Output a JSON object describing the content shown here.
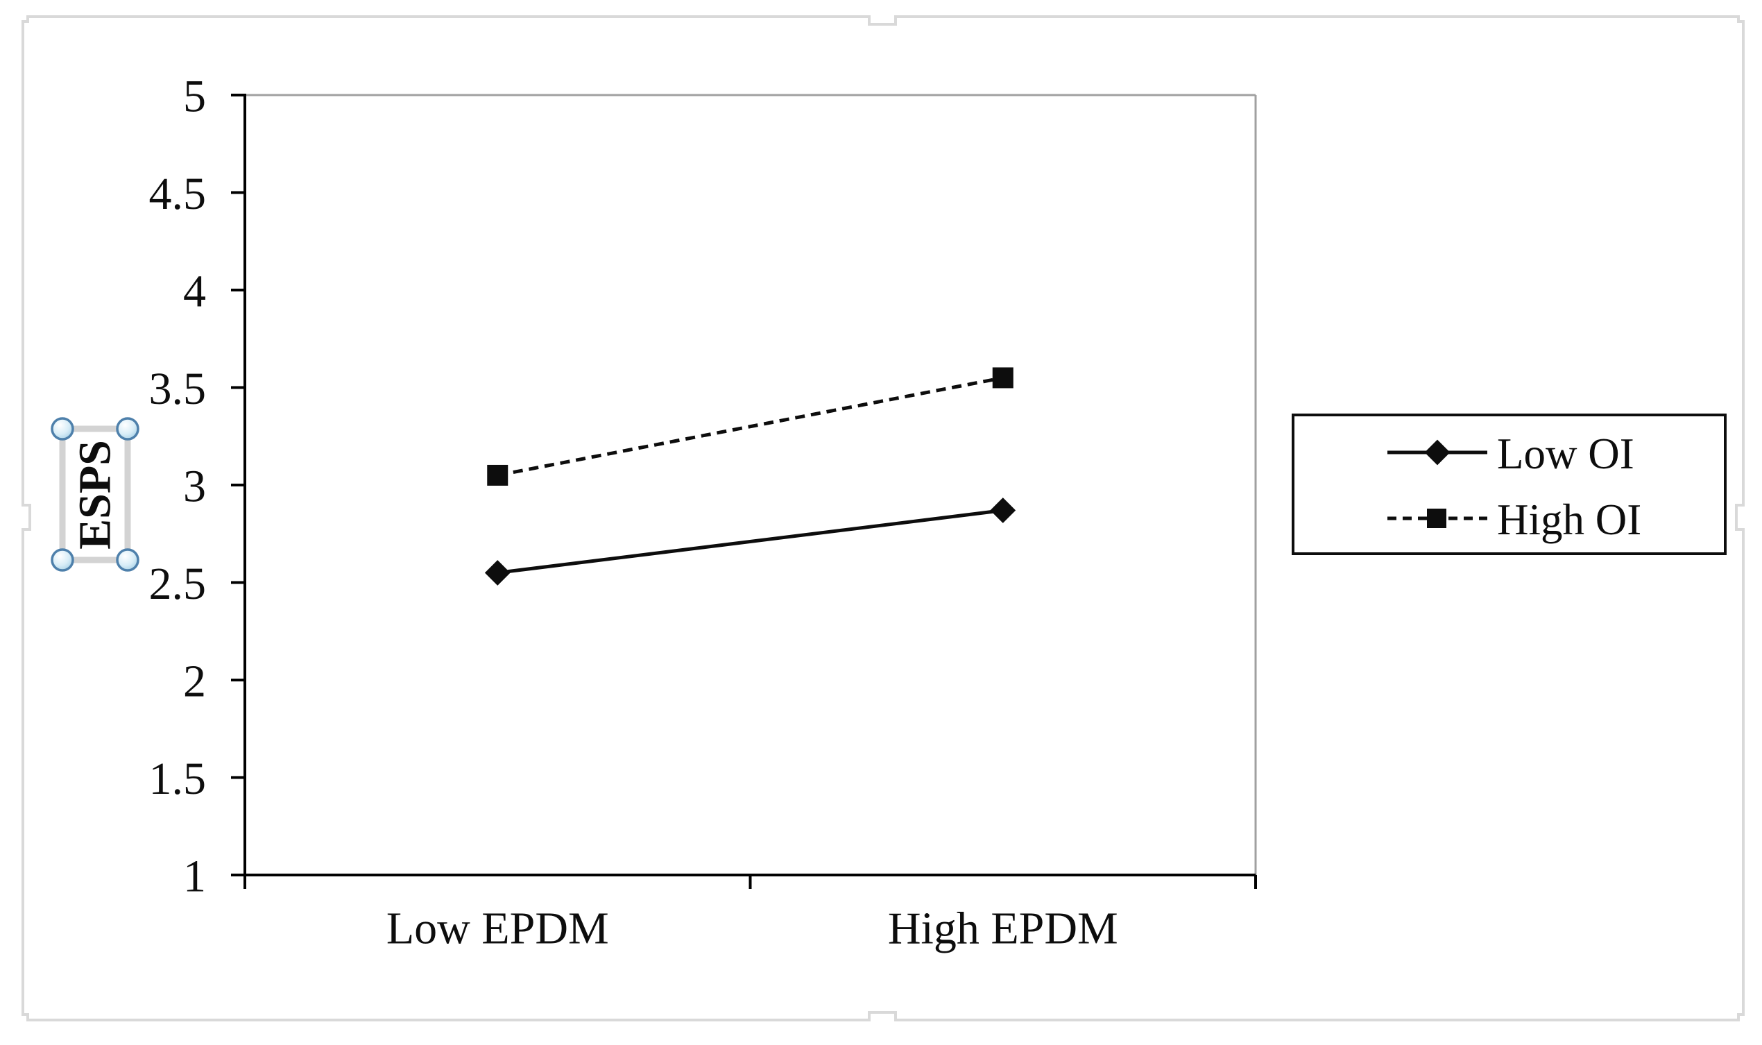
{
  "chart_data": {
    "type": "line",
    "categories": [
      "Low EPDM",
      "High EPDM"
    ],
    "series": [
      {
        "name": "Low OI",
        "values": [
          2.55,
          2.87
        ],
        "line_style": "solid",
        "marker": "diamond",
        "color": "#000000"
      },
      {
        "name": "High OI",
        "values": [
          3.05,
          3.55
        ],
        "line_style": "dashed",
        "marker": "square",
        "color": "#000000"
      }
    ],
    "title": "",
    "xlabel": "",
    "ylabel": "ESPS",
    "ylim": [
      1,
      5
    ],
    "ytick_labels": [
      "5",
      "4.5",
      "4",
      "3.5",
      "3",
      "2.5",
      "2",
      "1.5",
      "1"
    ],
    "grid": false,
    "legend_position": "right-middle"
  },
  "y_axis_title": {
    "text": "ESPS",
    "selected": true
  },
  "legend": {
    "entries": [
      "Low OI",
      "High OI"
    ]
  },
  "selection": {
    "selected_element": "y-axis-title",
    "handle_count": 4
  },
  "colors": {
    "background": "#ffffff",
    "chart_object_border": "#d9d9d9",
    "plot_border_gray": "#a0a0a0",
    "axis_black": "#000000",
    "series_black": "#0d0d0d",
    "selection_box_gray": "#d3d3d3",
    "handle_ring_blue": "#4e80ab",
    "handle_fill_blue": "#cde7f4"
  }
}
